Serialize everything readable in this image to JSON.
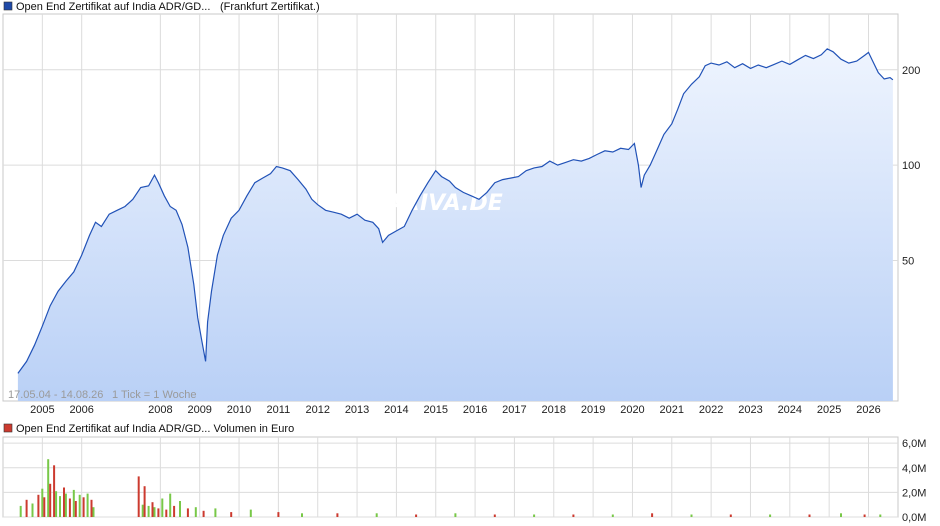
{
  "chart_data": [
    {
      "type": "area",
      "title": "Open End Zertifikat auf India ADR/GD...",
      "subtitle": "(Frankfurt Zertifikat.)",
      "legend_color": "#1f4aa8",
      "line_color": "#2152b7",
      "fill_top_color": "#eef4fe",
      "fill_bottom_color": "#b9d0f6",
      "watermark": "ARIVA.DE",
      "range_label": "17.05.04 - 14.08.26",
      "tick_info": "1 Tick = 1 Woche",
      "y_scale": "log",
      "ylim": [
        18,
        300
      ],
      "y_ticks": [
        50,
        100,
        200
      ],
      "y_tick_labels": [
        "50",
        "100",
        "200"
      ],
      "x_ticks": [
        2005,
        2006,
        2008,
        2009,
        2010,
        2011,
        2012,
        2013,
        2014,
        2015,
        2016,
        2017,
        2018,
        2019,
        2020,
        2021,
        2022,
        2023,
        2024,
        2025,
        2026
      ],
      "x_tick_labels": [
        "2005",
        "2006",
        "2008",
        "2009",
        "2010",
        "2011",
        "2012",
        "2013",
        "2014",
        "2015",
        "2016",
        "2017",
        "2018",
        "2019",
        "2020",
        "2021",
        "2022",
        "2023",
        "2024",
        "2025",
        "2026"
      ],
      "grid": true,
      "series": [
        {
          "x": [
            2004.38,
            2004.6,
            2004.8,
            2005.0,
            2005.2,
            2005.4,
            2005.6,
            2005.8,
            2006.0,
            2006.2,
            2006.35,
            2006.5,
            2006.7,
            2006.9,
            2007.1,
            2007.3,
            2007.5,
            2007.7,
            2007.85,
            2007.95,
            2008.1,
            2008.25,
            2008.4,
            2008.55,
            2008.7,
            2008.85,
            2008.95,
            2009.05,
            2009.15,
            2009.2,
            2009.3,
            2009.45,
            2009.6,
            2009.8,
            2010.0,
            2010.2,
            2010.4,
            2010.6,
            2010.8,
            2010.95,
            2011.1,
            2011.3,
            2011.5,
            2011.7,
            2011.85,
            2012.0,
            2012.2,
            2012.4,
            2012.6,
            2012.8,
            2013.0,
            2013.2,
            2013.4,
            2013.55,
            2013.65,
            2013.8,
            2014.0,
            2014.2,
            2014.4,
            2014.6,
            2014.8,
            2015.0,
            2015.15,
            2015.35,
            2015.5,
            2015.7,
            2015.9,
            2016.1,
            2016.3,
            2016.5,
            2016.7,
            2016.9,
            2017.1,
            2017.3,
            2017.5,
            2017.7,
            2017.9,
            2018.1,
            2018.3,
            2018.5,
            2018.7,
            2018.9,
            2019.1,
            2019.3,
            2019.5,
            2019.7,
            2019.9,
            2020.05,
            2020.15,
            2020.22,
            2020.3,
            2020.45,
            2020.6,
            2020.8,
            2021.0,
            2021.15,
            2021.3,
            2021.5,
            2021.7,
            2021.85,
            2022.0,
            2022.2,
            2022.4,
            2022.6,
            2022.8,
            2023.0,
            2023.2,
            2023.4,
            2023.6,
            2023.8,
            2024.0,
            2024.2,
            2024.4,
            2024.6,
            2024.8,
            2024.95,
            2025.1,
            2025.3,
            2025.5,
            2025.7,
            2025.9,
            2026.0,
            2026.1,
            2026.25,
            2026.4,
            2026.55,
            2026.62
          ],
          "y": [
            22,
            24,
            27,
            31,
            36,
            40,
            43,
            46,
            52,
            60,
            66,
            64,
            70,
            72,
            74,
            78,
            85,
            86,
            93,
            88,
            80,
            74,
            72,
            65,
            55,
            42,
            33,
            28,
            24,
            32,
            40,
            52,
            60,
            68,
            72,
            80,
            88,
            91,
            94,
            99,
            98,
            96,
            90,
            84,
            78,
            75,
            72,
            71,
            70,
            68,
            70,
            67,
            66,
            63,
            57,
            60,
            62,
            64,
            72,
            80,
            88,
            96,
            92,
            89,
            85,
            82,
            80,
            78,
            82,
            88,
            90,
            91,
            92,
            96,
            98,
            99,
            103,
            100,
            102,
            104,
            103,
            105,
            108,
            111,
            110,
            113,
            112,
            117,
            100,
            85,
            93,
            100,
            110,
            125,
            135,
            150,
            168,
            180,
            190,
            206,
            210,
            207,
            212,
            203,
            209,
            202,
            207,
            203,
            208,
            213,
            208,
            215,
            222,
            217,
            223,
            233,
            228,
            216,
            210,
            213,
            222,
            227,
            214,
            196,
            187,
            189,
            186
          ]
        }
      ]
    },
    {
      "type": "bar",
      "title": "Open End Zertifikat auf India ADR/GD... Volumen in Euro",
      "legend_color": "#cc3a2f",
      "up_color": "#78c848",
      "down_color": "#cc3a2f",
      "ylim": [
        0,
        6.5
      ],
      "y_unit": "M",
      "y_ticks": [
        0,
        2,
        4,
        6
      ],
      "y_tick_labels": [
        "0,0M",
        "2,0M",
        "4,0M",
        "6,0M"
      ],
      "grid": true,
      "series": [
        {
          "name": "Volumen",
          "x": [
            2004.45,
            2004.6,
            2004.75,
            2004.9,
            2005.0,
            2005.05,
            2005.15,
            2005.2,
            2005.3,
            2005.35,
            2005.45,
            2005.55,
            2005.6,
            2005.7,
            2005.8,
            2005.85,
            2005.95,
            2006.05,
            2006.15,
            2006.25,
            2006.3,
            2007.45,
            2007.55,
            2007.6,
            2007.7,
            2007.8,
            2007.85,
            2007.95,
            2008.05,
            2008.15,
            2008.25,
            2008.35,
            2008.5,
            2008.7,
            2008.9,
            2009.1,
            2009.4,
            2009.8,
            2010.3,
            2011.0,
            2011.6,
            2012.5,
            2013.5,
            2014.5,
            2015.5,
            2016.5,
            2017.5,
            2018.5,
            2019.5,
            2020.5,
            2021.5,
            2022.5,
            2023.5,
            2024.5,
            2025.3,
            2025.9,
            2026.3
          ],
          "values": [
            0.9,
            1.4,
            1.1,
            1.8,
            2.3,
            1.6,
            4.7,
            2.7,
            4.2,
            2.1,
            1.7,
            2.4,
            1.9,
            1.5,
            2.2,
            1.3,
            1.8,
            1.6,
            1.9,
            1.4,
            0.8,
            3.3,
            1.0,
            2.5,
            0.9,
            1.2,
            0.8,
            0.7,
            1.5,
            0.6,
            1.9,
            0.9,
            1.3,
            0.7,
            0.8,
            0.5,
            0.7,
            0.4,
            0.6,
            0.4,
            0.3,
            0.3,
            0.3,
            0.2,
            0.3,
            0.2,
            0.2,
            0.2,
            0.2,
            0.3,
            0.2,
            0.2,
            0.2,
            0.2,
            0.3,
            0.2,
            0.2
          ],
          "up": [
            true,
            false,
            true,
            false,
            true,
            false,
            true,
            false,
            false,
            true,
            true,
            false,
            true,
            false,
            true,
            false,
            true,
            false,
            true,
            false,
            true,
            false,
            true,
            false,
            true,
            false,
            true,
            false,
            true,
            false,
            true,
            false,
            true,
            false,
            true,
            false,
            true,
            false,
            true,
            false,
            true,
            false,
            true,
            false,
            true,
            false,
            true,
            false,
            true,
            false,
            true,
            false,
            true,
            false,
            true,
            false,
            true
          ]
        }
      ]
    }
  ]
}
